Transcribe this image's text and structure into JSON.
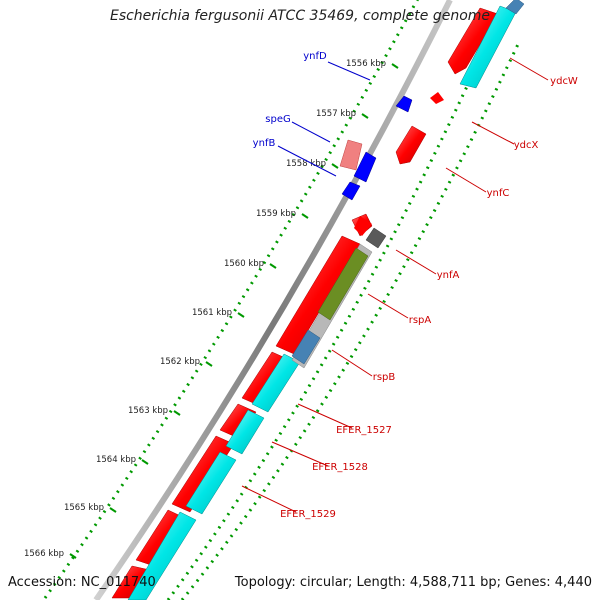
{
  "title": "Escherichia fergusonii ATCC 35469, complete genome",
  "footer": {
    "accession": "Accession: NC_011740",
    "summary": "Topology: circular; Length: 4,588,711 bp; Genes: 4,440"
  },
  "colors": {
    "cds_red": "#ff0000",
    "cds_cyan": "#00e6e6",
    "blue_gene": "#0000ff",
    "pink_gene": "#f08080",
    "gray_gene": "#555555",
    "olive_gene": "#6b8e23",
    "steel_gene": "#4682b4",
    "label_red": "#cc0000",
    "label_blue": "#0000cc",
    "tick_green": "#007700"
  },
  "ruler": [
    {
      "label": "1556 kbp"
    },
    {
      "label": "1557 kbp"
    },
    {
      "label": "1558 kbp"
    },
    {
      "label": "1559 kbp"
    },
    {
      "label": "1560 kbp"
    },
    {
      "label": "1561 kbp"
    },
    {
      "label": "1562 kbp"
    },
    {
      "label": "1563 kbp"
    },
    {
      "label": "1564 kbp"
    },
    {
      "label": "1565 kbp"
    },
    {
      "label": "1566 kbp"
    }
  ],
  "gene_labels": {
    "left": [
      "ynfD",
      "speG",
      "ynfB"
    ],
    "right": [
      "ydcW",
      "ydcX",
      "ynfC",
      "ynfA",
      "rspA",
      "rspB",
      "EFER_1527",
      "EFER_1528",
      "EFER_1529"
    ]
  }
}
